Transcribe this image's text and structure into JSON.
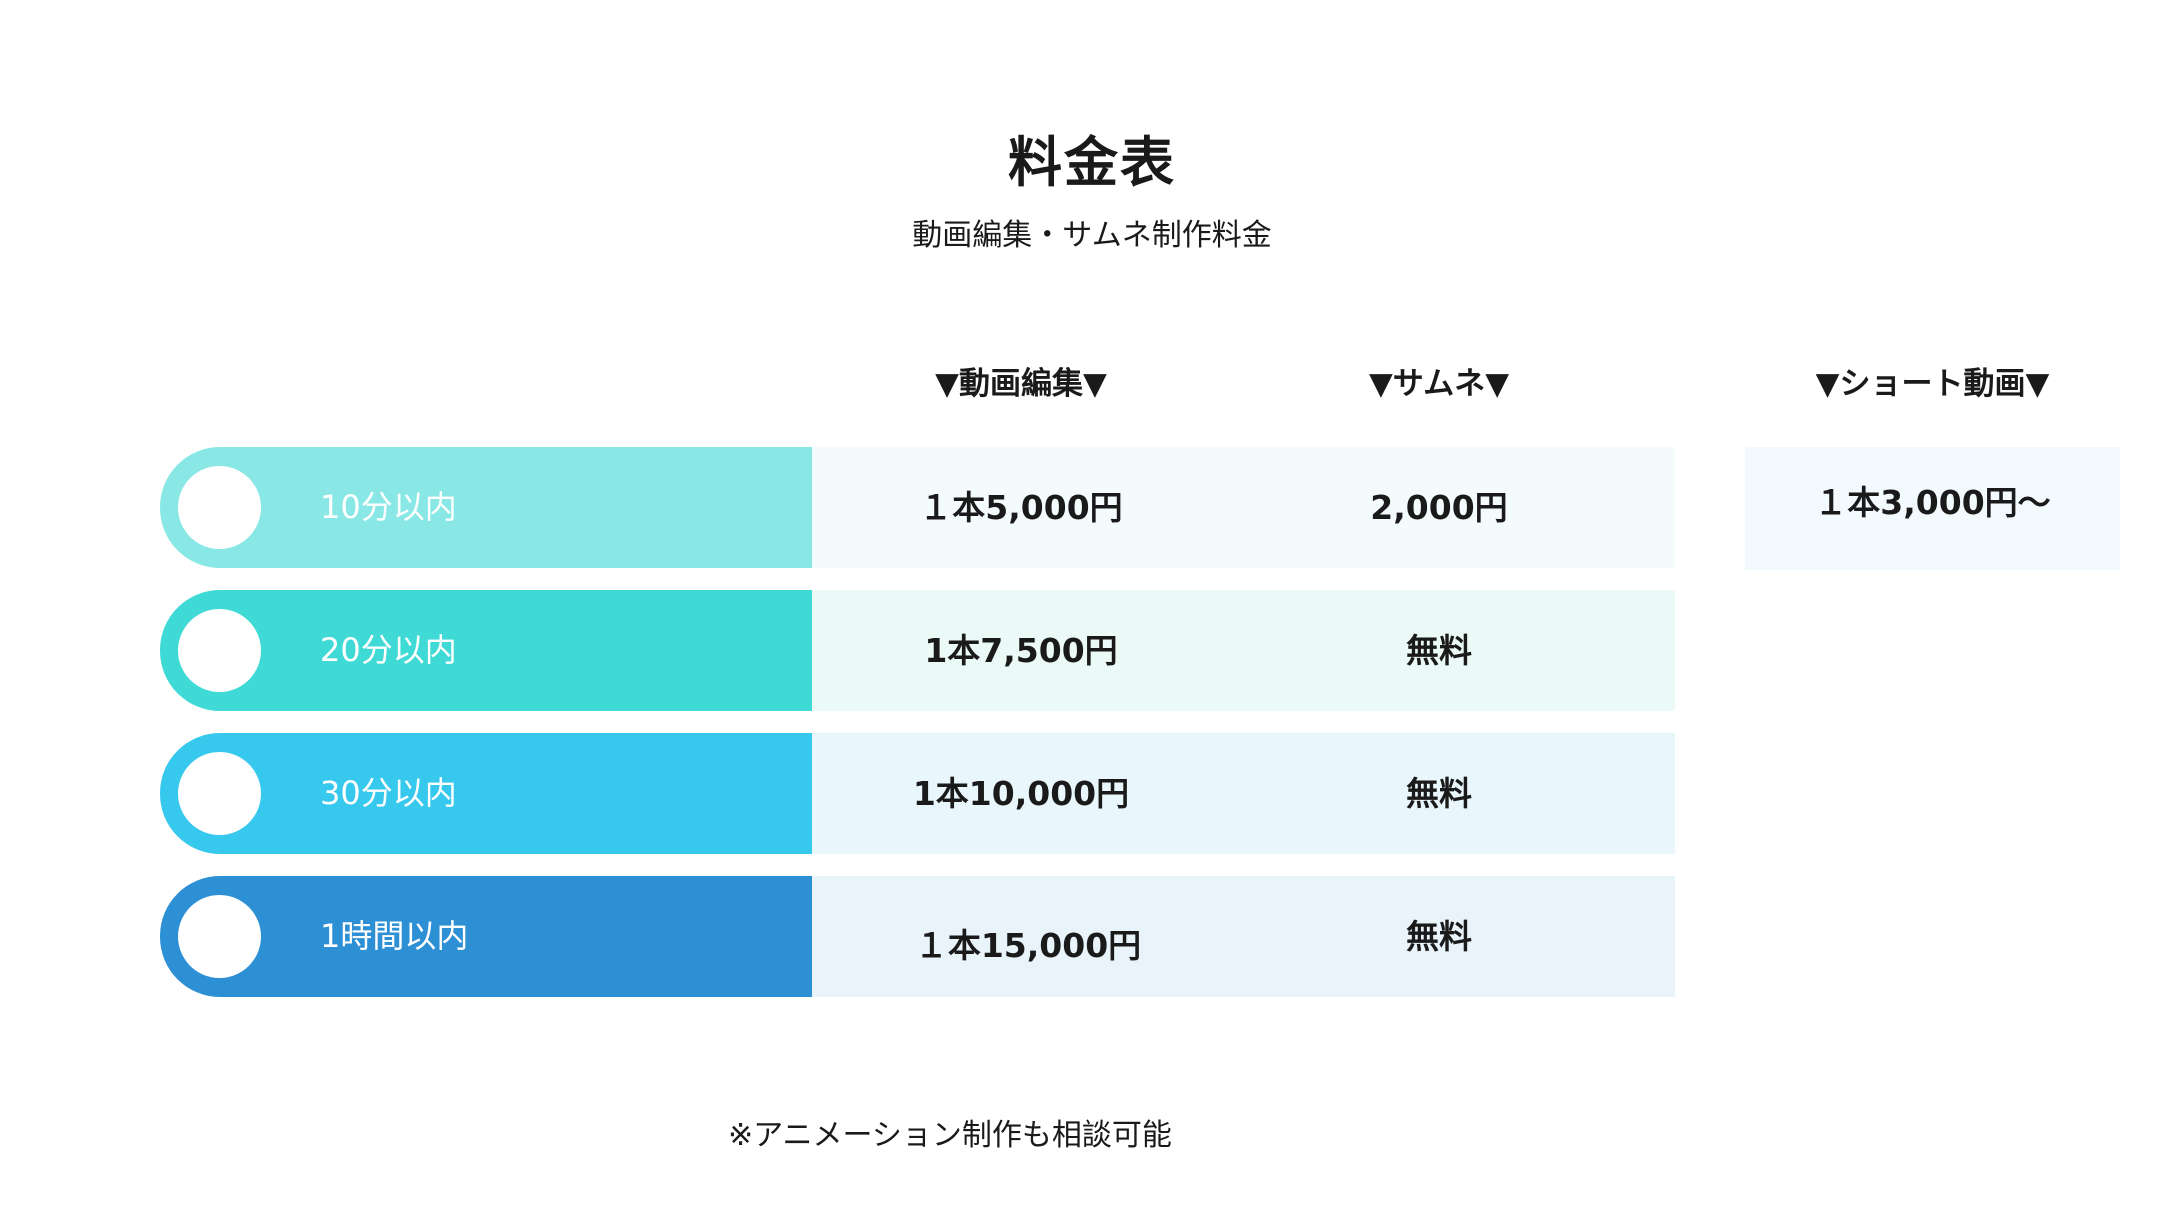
{
  "header": {
    "title": "料金表",
    "subtitle": "動画編集・サムネ制作料金"
  },
  "columns": {
    "video": "▼動画編集▼",
    "thumbnail": "▼サムネ▼",
    "short": "▼ショート動画▼"
  },
  "rows": [
    {
      "label": "10分以内",
      "video": "１本5,000円",
      "thumbnail": "2,000円",
      "color": "#89e8e6",
      "cell_bg": "#f3fbfd"
    },
    {
      "label": "20分以内",
      "video": "1本7,500円",
      "thumbnail": "無料",
      "color": "#3fdad6",
      "cell_bg": "#ebf9f7"
    },
    {
      "label": "30分以内",
      "video": "1本10,000円",
      "thumbnail": "無料",
      "color": "#37c8ee",
      "cell_bg": "#e9f6fb"
    },
    {
      "label": "1時間以内",
      "video": "１本15,000円",
      "thumbnail": "無料",
      "color": "#2d8fd4",
      "cell_bg": "#e8f3fa"
    }
  ],
  "short": {
    "price": "１本3,000円〜"
  },
  "footer": {
    "note": "※アニメーション制作も相談可能"
  }
}
